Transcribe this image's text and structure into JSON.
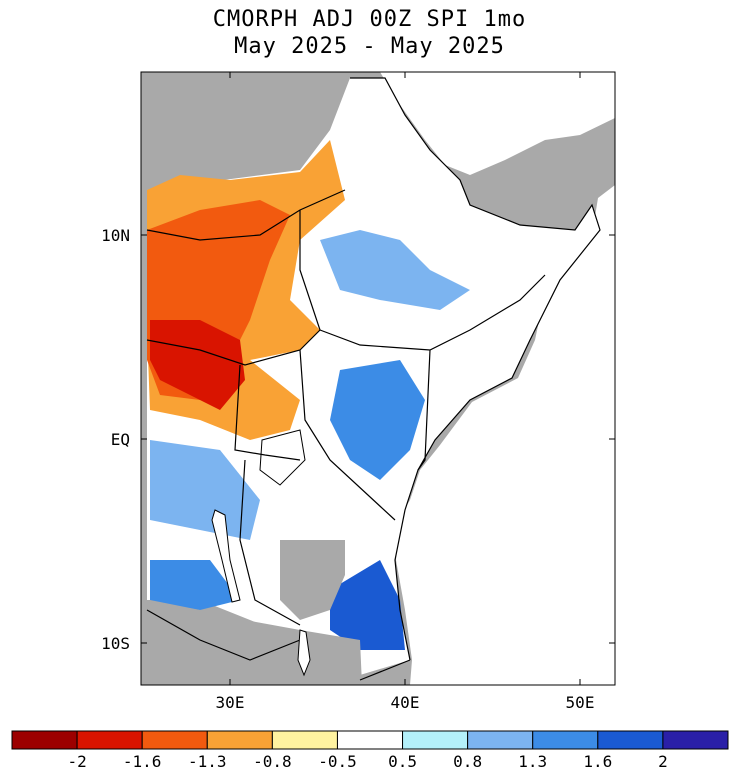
{
  "title": {
    "line1": "CMORPH ADJ 00Z SPI 1mo",
    "line2": "May 2025 - May 2025"
  },
  "map": {
    "lat_ticks": [
      "10N",
      "EQ",
      "10S"
    ],
    "lon_ticks": [
      "30E",
      "40E",
      "50E"
    ],
    "colors": {
      "land_nodata": "#a9a9a9",
      "ocean": "#ffffff",
      "boundary": "#000000"
    }
  },
  "colorbar": {
    "labels": [
      "-2",
      "-1.6",
      "-1.3",
      "-0.8",
      "-0.5",
      "0.5",
      "0.8",
      "1.3",
      "1.6",
      "2"
    ],
    "colors": [
      "#9c0000",
      "#d91400",
      "#f25a0f",
      "#f9a235",
      "#fff3a0",
      "#ffffff",
      "#b4f0fa",
      "#7cb4f0",
      "#3c8ce6",
      "#1a5ad2",
      "#2a1fa8"
    ]
  }
}
